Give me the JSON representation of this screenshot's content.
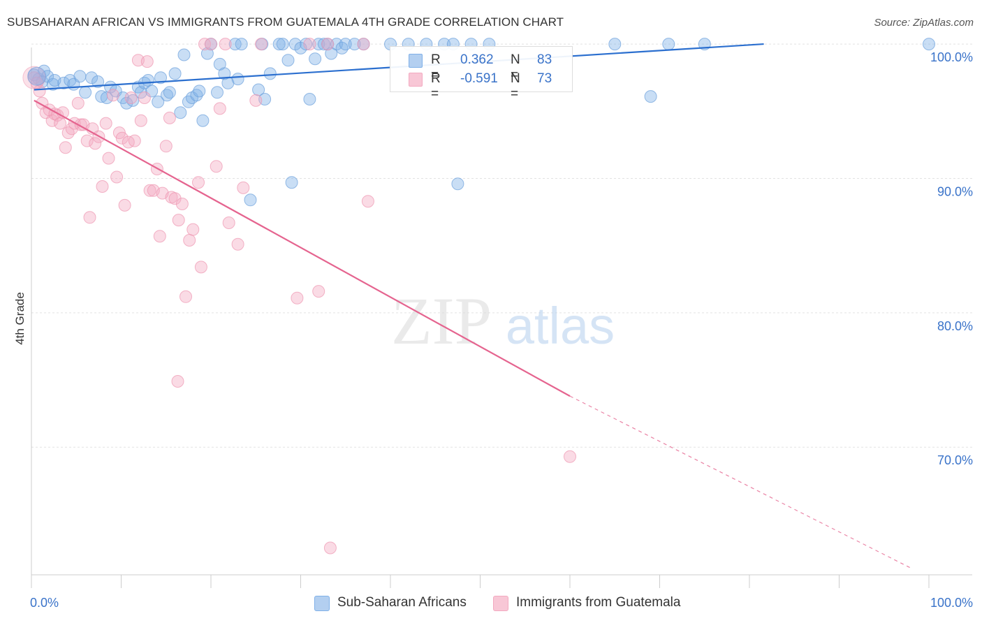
{
  "title": "SUBSAHARAN AFRICAN VS IMMIGRANTS FROM GUATEMALA 4TH GRADE CORRELATION CHART",
  "source": "Source: ZipAtlas.com",
  "watermark": {
    "zip": "ZIP",
    "atlas": "atlas"
  },
  "colors": {
    "blue": "#7fb0e8",
    "blue_line": "#2b6fcf",
    "pink": "#f3a9c0",
    "pink_line": "#e5648f",
    "axis_text": "#3a73c9"
  },
  "legend": {
    "rows": [
      {
        "r_key": "R =",
        "r_value": "0.362",
        "n_key": "N =",
        "n_value": "83"
      },
      {
        "r_key": "R =",
        "r_value": "-0.591",
        "n_key": "N =",
        "n_value": "73"
      }
    ]
  },
  "bottom_legend": [
    {
      "label": "Sub-Saharan Africans"
    },
    {
      "label": "Immigrants from Guatemala"
    }
  ],
  "chart_data": {
    "type": "scatter",
    "title": "SUBSAHARAN AFRICAN VS IMMIGRANTS FROM GUATEMALA 4TH GRADE CORRELATION CHART",
    "xlabel": "",
    "ylabel": "4th Grade",
    "xlim": [
      0,
      100
    ],
    "ylim": [
      60.5,
      101.2
    ],
    "x_tick_labels": [
      "0.0%",
      "100.0%"
    ],
    "y_ticks": [
      70,
      80,
      90,
      100
    ],
    "y_tick_labels": [
      "70.0%",
      "80.0%",
      "90.0%",
      "100.0%"
    ],
    "grid": true,
    "legend_position": "top-center",
    "series": [
      {
        "name": "Sub-Saharan Africans",
        "color": "#7fb0e8",
        "trend": {
          "x": [
            0.3,
            81.6
          ],
          "y": [
            96.6,
            100.0
          ]
        },
        "points": [
          [
            0.3,
            97.7
          ],
          [
            0.8,
            97.4
          ],
          [
            1.2,
            97.2
          ],
          [
            1.4,
            98.0
          ],
          [
            1.8,
            97.6
          ],
          [
            2.4,
            97.0
          ],
          [
            2.6,
            97.3
          ],
          [
            3.6,
            97.1
          ],
          [
            4.3,
            97.3
          ],
          [
            4.7,
            97.0
          ],
          [
            5.4,
            97.6
          ],
          [
            6.0,
            96.4
          ],
          [
            6.7,
            97.5
          ],
          [
            7.4,
            97.2
          ],
          [
            7.8,
            96.1
          ],
          [
            8.4,
            96.0
          ],
          [
            8.8,
            96.8
          ],
          [
            9.4,
            96.5
          ],
          [
            10.2,
            96.0
          ],
          [
            10.6,
            95.6
          ],
          [
            11.3,
            95.8
          ],
          [
            11.9,
            96.8
          ],
          [
            12.2,
            96.4
          ],
          [
            12.6,
            97.1
          ],
          [
            13.0,
            97.3
          ],
          [
            13.4,
            96.5
          ],
          [
            14.1,
            95.7
          ],
          [
            14.4,
            97.5
          ],
          [
            15.1,
            96.2
          ],
          [
            15.4,
            96.4
          ],
          [
            16.0,
            97.8
          ],
          [
            16.6,
            94.9
          ],
          [
            17.0,
            99.2
          ],
          [
            17.5,
            95.7
          ],
          [
            17.9,
            96.0
          ],
          [
            18.4,
            96.2
          ],
          [
            18.7,
            96.5
          ],
          [
            19.1,
            94.3
          ],
          [
            19.6,
            99.3
          ],
          [
            20.0,
            100.0
          ],
          [
            20.7,
            96.4
          ],
          [
            21.0,
            98.5
          ],
          [
            21.5,
            97.8
          ],
          [
            21.9,
            97.1
          ],
          [
            22.7,
            100.0
          ],
          [
            23.0,
            97.4
          ],
          [
            23.4,
            100.0
          ],
          [
            24.4,
            88.4
          ],
          [
            25.3,
            96.6
          ],
          [
            25.7,
            100.0
          ],
          [
            26.0,
            95.9
          ],
          [
            26.6,
            97.8
          ],
          [
            27.6,
            100.0
          ],
          [
            28.0,
            100.0
          ],
          [
            28.6,
            98.8
          ],
          [
            29.0,
            89.7
          ],
          [
            29.4,
            100.0
          ],
          [
            30.0,
            99.7
          ],
          [
            30.6,
            100.0
          ],
          [
            31.0,
            95.9
          ],
          [
            31.6,
            98.9
          ],
          [
            32.0,
            100.0
          ],
          [
            32.6,
            100.0
          ],
          [
            33.0,
            100.0
          ],
          [
            33.4,
            99.3
          ],
          [
            34.0,
            100.0
          ],
          [
            34.6,
            99.7
          ],
          [
            35.0,
            100.0
          ],
          [
            36.0,
            100.0
          ],
          [
            37.0,
            100.0
          ],
          [
            40.0,
            100.0
          ],
          [
            42.0,
            100.0
          ],
          [
            44.0,
            100.0
          ],
          [
            46.0,
            100.0
          ],
          [
            47.0,
            100.0
          ],
          [
            47.5,
            89.6
          ],
          [
            49.0,
            100.0
          ],
          [
            51.0,
            100.0
          ],
          [
            65.0,
            100.0
          ],
          [
            69.0,
            96.1
          ],
          [
            71.0,
            100.0
          ],
          [
            75.0,
            100.0
          ],
          [
            100.0,
            100.0
          ]
        ]
      },
      {
        "name": "Immigrants from Guatemala",
        "color": "#f3a9c0",
        "trend": {
          "x": [
            0.3,
            60.0
          ],
          "y": [
            95.8,
            73.8
          ]
        },
        "trend_dashed": {
          "x": [
            60.0,
            98.0
          ],
          "y": [
            73.8,
            61.0
          ]
        },
        "points": [
          [
            0.3,
            97.5
          ],
          [
            0.6,
            97.1
          ],
          [
            0.9,
            96.5
          ],
          [
            1.2,
            95.6
          ],
          [
            1.6,
            94.9
          ],
          [
            2.0,
            95.1
          ],
          [
            2.3,
            94.3
          ],
          [
            2.6,
            94.8
          ],
          [
            2.9,
            94.7
          ],
          [
            3.2,
            94.1
          ],
          [
            3.5,
            94.9
          ],
          [
            3.8,
            92.3
          ],
          [
            4.1,
            93.4
          ],
          [
            4.5,
            93.7
          ],
          [
            4.8,
            94.1
          ],
          [
            5.2,
            95.6
          ],
          [
            5.5,
            94.0
          ],
          [
            5.8,
            94.0
          ],
          [
            6.2,
            92.8
          ],
          [
            6.5,
            87.1
          ],
          [
            6.8,
            93.7
          ],
          [
            7.1,
            92.6
          ],
          [
            7.5,
            93.1
          ],
          [
            7.9,
            89.4
          ],
          [
            8.3,
            94.1
          ],
          [
            8.6,
            91.5
          ],
          [
            9.1,
            96.2
          ],
          [
            9.5,
            90.1
          ],
          [
            9.8,
            93.4
          ],
          [
            10.1,
            93.0
          ],
          [
            10.4,
            88.0
          ],
          [
            10.8,
            92.7
          ],
          [
            11.1,
            96.0
          ],
          [
            11.5,
            92.8
          ],
          [
            11.9,
            98.8
          ],
          [
            12.2,
            94.3
          ],
          [
            12.6,
            96.0
          ],
          [
            12.9,
            98.7
          ],
          [
            13.2,
            89.1
          ],
          [
            13.6,
            89.1
          ],
          [
            14.0,
            90.7
          ],
          [
            14.3,
            85.7
          ],
          [
            14.6,
            88.9
          ],
          [
            15.0,
            92.4
          ],
          [
            15.4,
            94.5
          ],
          [
            15.6,
            88.6
          ],
          [
            16.0,
            88.5
          ],
          [
            16.4,
            86.9
          ],
          [
            16.8,
            88.1
          ],
          [
            17.2,
            81.2
          ],
          [
            17.6,
            85.4
          ],
          [
            18.0,
            86.2
          ],
          [
            18.6,
            89.7
          ],
          [
            18.9,
            83.4
          ],
          [
            19.3,
            100.0
          ],
          [
            20.0,
            100.0
          ],
          [
            20.6,
            90.9
          ],
          [
            21.0,
            95.2
          ],
          [
            21.6,
            100.0
          ],
          [
            22.0,
            86.7
          ],
          [
            23.0,
            85.1
          ],
          [
            23.6,
            89.3
          ],
          [
            25.0,
            95.8
          ],
          [
            25.6,
            100.0
          ],
          [
            29.6,
            81.1
          ],
          [
            31.0,
            100.0
          ],
          [
            32.0,
            81.6
          ],
          [
            33.0,
            100.0
          ],
          [
            37.0,
            100.0
          ],
          [
            37.5,
            88.3
          ],
          [
            60.0,
            69.3
          ],
          [
            16.3,
            74.9
          ],
          [
            33.3,
            62.5
          ]
        ]
      }
    ]
  }
}
